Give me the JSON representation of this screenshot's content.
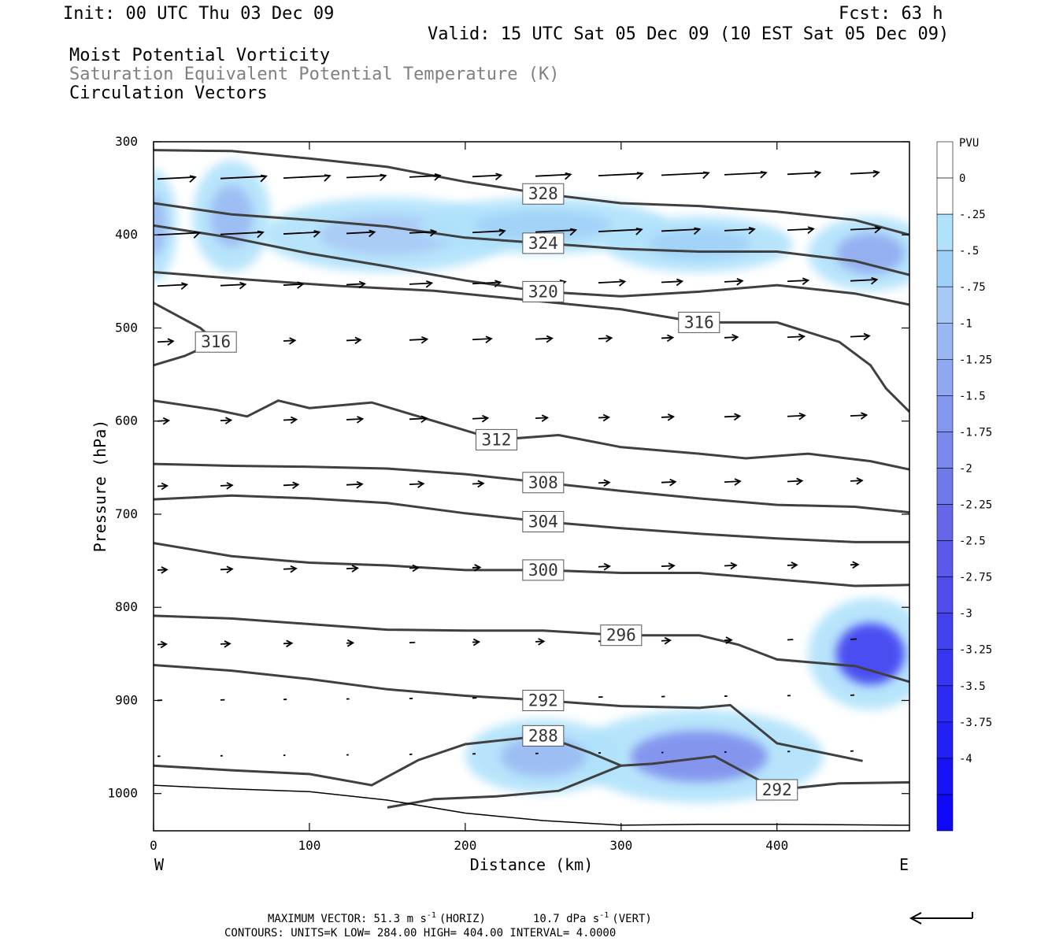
{
  "header": {
    "init": "Init: 00 UTC Thu 03 Dec 09",
    "fcst": "Fcst:   63 h",
    "valid": "Valid: 15 UTC Sat 05 Dec 09 (10 EST Sat 05 Dec 09)",
    "field1": "Moist Potential Vorticity",
    "field2": "Saturation Equivalent Potential Temperature (K)",
    "field3": "Circulation Vectors"
  },
  "footer": {
    "maxvec_label": "MAXIMUM VECTOR:",
    "maxvec_horiz_value": "51.3 m s",
    "maxvec_horiz_unit": "(HORIZ)",
    "maxvec_vert_value": "10.7 dPa s",
    "maxvec_vert_unit": "(VERT)",
    "exponent": "-1",
    "contours": "CONTOURS:  UNITS=K  LOW=  284.00      HIGH=  404.00      INTERVAL=    4.0000"
  },
  "colors": {
    "contour": "#404040",
    "pv_levels": [
      "#ffffff",
      "#ffffff",
      "#b0e2fb",
      "#9fd0f7",
      "#a8c8f5",
      "#99b8f2",
      "#8fa8f0",
      "#8497ee",
      "#7b88ec",
      "#7078ea",
      "#6468e8",
      "#5a5aea",
      "#4e4ceb",
      "#4340ee",
      "#3835f0",
      "#2d2bf2",
      "#2320f5",
      "#1812f7",
      "#0f08fb",
      "#0500ff"
    ]
  },
  "chart_data": {
    "type": "cross-section",
    "xlabel": "Distance (km)",
    "ylabel": "Pressure (hPa)",
    "xlim": [
      0,
      485
    ],
    "ylim": [
      1040,
      300
    ],
    "x_ticks": [
      0,
      100,
      200,
      300,
      400
    ],
    "y_ticks": [
      300,
      400,
      500,
      600,
      700,
      800,
      900,
      1000
    ],
    "x_end_labels": {
      "left": "W",
      "right": "E"
    },
    "colorbar": {
      "unit": "PVU",
      "levels": [
        "0",
        "-.25",
        "-.5",
        "-.75",
        "-1",
        "-1.25",
        "-1.5",
        "-1.75",
        "-2",
        "-2.25",
        "-2.5",
        "-2.75",
        "-3",
        "-3.25",
        "-3.5",
        "-3.75",
        "-4"
      ]
    },
    "contours": [
      {
        "value": 328,
        "points": [
          [
            0,
            309
          ],
          [
            50,
            310
          ],
          [
            100,
            318
          ],
          [
            150,
            327
          ],
          [
            200,
            343
          ],
          [
            250,
            356
          ],
          [
            300,
            366
          ],
          [
            350,
            369
          ],
          [
            400,
            375
          ],
          [
            450,
            384
          ],
          [
            485,
            400
          ]
        ]
      },
      {
        "value": 324,
        "points": [
          [
            0,
            366
          ],
          [
            50,
            378
          ],
          [
            100,
            384
          ],
          [
            150,
            391
          ],
          [
            200,
            403
          ],
          [
            250,
            409
          ],
          [
            300,
            415
          ],
          [
            350,
            418
          ],
          [
            400,
            418
          ],
          [
            450,
            428
          ],
          [
            485,
            443
          ]
        ]
      },
      {
        "value": 320,
        "points": [
          [
            0,
            390
          ],
          [
            50,
            403
          ],
          [
            100,
            420
          ],
          [
            150,
            434
          ],
          [
            200,
            449
          ],
          [
            250,
            461
          ],
          [
            300,
            466
          ],
          [
            350,
            461
          ],
          [
            400,
            454
          ],
          [
            450,
            463
          ],
          [
            485,
            475
          ]
        ]
      },
      {
        "value": 316,
        "points": [
          [
            0,
            473
          ],
          [
            30,
            500
          ],
          [
            40,
            515
          ],
          [
            20,
            530
          ],
          [
            0,
            540
          ]
        ]
      },
      {
        "value": 316,
        "points": [
          [
            0,
            440
          ],
          [
            60,
            448
          ],
          [
            120,
            455
          ],
          [
            180,
            460
          ],
          [
            240,
            470
          ],
          [
            300,
            480
          ],
          [
            350,
            494
          ],
          [
            400,
            494
          ],
          [
            440,
            515
          ],
          [
            460,
            540
          ],
          [
            470,
            565
          ],
          [
            485,
            590
          ]
        ]
      },
      {
        "value": 312,
        "points": [
          [
            0,
            578
          ],
          [
            40,
            588
          ],
          [
            60,
            595
          ],
          [
            80,
            578
          ],
          [
            100,
            586
          ],
          [
            140,
            580
          ],
          [
            180,
            600
          ],
          [
            220,
            620
          ],
          [
            260,
            615
          ],
          [
            300,
            628
          ],
          [
            350,
            635
          ],
          [
            380,
            640
          ],
          [
            420,
            635
          ],
          [
            460,
            643
          ],
          [
            485,
            652
          ]
        ]
      },
      {
        "value": 308,
        "points": [
          [
            0,
            646
          ],
          [
            50,
            648
          ],
          [
            100,
            649
          ],
          [
            150,
            651
          ],
          [
            200,
            657
          ],
          [
            250,
            666
          ],
          [
            300,
            675
          ],
          [
            350,
            683
          ],
          [
            400,
            690
          ],
          [
            450,
            692
          ],
          [
            485,
            698
          ]
        ]
      },
      {
        "value": 304,
        "points": [
          [
            0,
            684
          ],
          [
            50,
            680
          ],
          [
            100,
            683
          ],
          [
            150,
            688
          ],
          [
            200,
            699
          ],
          [
            250,
            708
          ],
          [
            300,
            715
          ],
          [
            350,
            721
          ],
          [
            400,
            726
          ],
          [
            450,
            730
          ],
          [
            485,
            730
          ]
        ]
      },
      {
        "value": 300,
        "points": [
          [
            0,
            731
          ],
          [
            50,
            745
          ],
          [
            100,
            752
          ],
          [
            150,
            755
          ],
          [
            200,
            760
          ],
          [
            250,
            760
          ],
          [
            300,
            763
          ],
          [
            350,
            763
          ],
          [
            400,
            770
          ],
          [
            450,
            777
          ],
          [
            485,
            776
          ]
        ]
      },
      {
        "value": 296,
        "points": [
          [
            0,
            809
          ],
          [
            50,
            812
          ],
          [
            100,
            818
          ],
          [
            150,
            824
          ],
          [
            200,
            825
          ],
          [
            250,
            825
          ],
          [
            300,
            830
          ],
          [
            350,
            830
          ],
          [
            375,
            840
          ],
          [
            400,
            856
          ],
          [
            450,
            863
          ],
          [
            485,
            880
          ]
        ]
      },
      {
        "value": 292,
        "points": [
          [
            0,
            862
          ],
          [
            50,
            868
          ],
          [
            100,
            877
          ],
          [
            150,
            888
          ],
          [
            200,
            895
          ],
          [
            250,
            900
          ],
          [
            300,
            906
          ],
          [
            350,
            908
          ],
          [
            370,
            905
          ],
          [
            400,
            946
          ],
          [
            455,
            965
          ]
        ]
      },
      {
        "value": 292,
        "points": [
          [
            300,
            970
          ],
          [
            320,
            968
          ],
          [
            360,
            960
          ],
          [
            400,
            996
          ],
          [
            440,
            989
          ],
          [
            485,
            988
          ]
        ]
      },
      {
        "value": 288,
        "points": [
          [
            0,
            970
          ],
          [
            50,
            975
          ],
          [
            100,
            979
          ],
          [
            140,
            991
          ],
          [
            170,
            964
          ],
          [
            200,
            947
          ],
          [
            250,
            938
          ],
          [
            280,
            956
          ],
          [
            300,
            970
          ],
          [
            260,
            997
          ],
          [
            220,
            1003
          ],
          [
            180,
            1006
          ],
          [
            150,
            1015
          ]
        ]
      },
      {
        "value": 284,
        "points": [
          [
            0,
            991
          ],
          [
            50,
            995
          ],
          [
            100,
            998
          ],
          [
            150,
            1007
          ],
          [
            200,
            1021
          ],
          [
            250,
            1029
          ],
          [
            300,
            1034
          ],
          [
            350,
            1033
          ],
          [
            400,
            1033
          ],
          [
            485,
            1034
          ]
        ]
      }
    ],
    "pv_blobs": [
      {
        "center": [
          0,
          390
        ],
        "radius": [
          15,
          60
        ],
        "value": -1.0
      },
      {
        "center": [
          50,
          380
        ],
        "radius": [
          25,
          60
        ],
        "value": -0.9
      },
      {
        "center": [
          150,
          400
        ],
        "radius": [
          80,
          40
        ],
        "value": -0.7
      },
      {
        "center": [
          250,
          390
        ],
        "radius": [
          80,
          30
        ],
        "value": -0.6
      },
      {
        "center": [
          350,
          410
        ],
        "radius": [
          60,
          30
        ],
        "value": -0.5
      },
      {
        "center": [
          460,
          420
        ],
        "radius": [
          40,
          40
        ],
        "value": -1.2
      },
      {
        "center": [
          460,
          850
        ],
        "radius": [
          40,
          60
        ],
        "value": -3.2
      },
      {
        "center": [
          350,
          960
        ],
        "radius": [
          80,
          50
        ],
        "value": -1.8
      },
      {
        "center": [
          250,
          960
        ],
        "radius": [
          50,
          40
        ],
        "value": -1.0
      }
    ]
  }
}
